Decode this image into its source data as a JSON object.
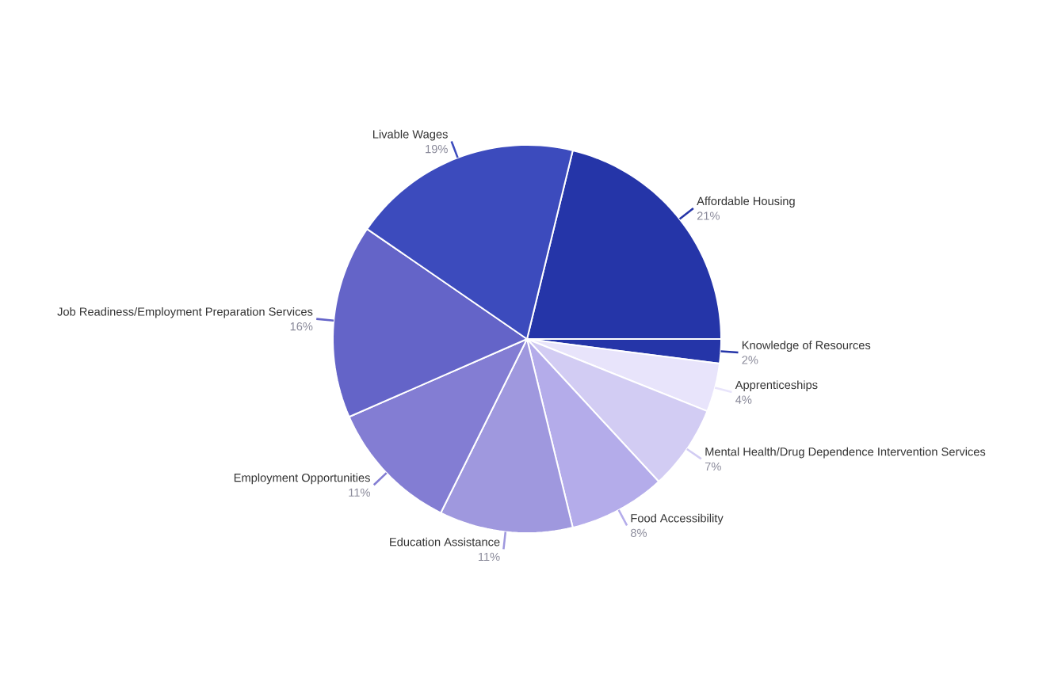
{
  "chart_data": {
    "type": "pie",
    "categories": [
      "Affordable Housing",
      "Knowledge of Resources",
      "Apprenticeships",
      "Mental Health/Drug Dependence Intervention Services",
      "Food Accessibility",
      "Education Assistance",
      "Employment Opportunities",
      "Job Readiness/Employment Preparation Services",
      "Livable Wages"
    ],
    "values": [
      21,
      2,
      4,
      7,
      8,
      11,
      11,
      16,
      19
    ],
    "value_labels": [
      "21%",
      "2%",
      "4%",
      "7%",
      "8%",
      "11%",
      "11%",
      "16%",
      "19%"
    ],
    "colors": [
      "#2535a8",
      "#2535a8",
      "#e8e4fb",
      "#d2ccf3",
      "#b4acea",
      "#9f98de",
      "#837dd3",
      "#6464c8",
      "#3c4bbd"
    ]
  }
}
